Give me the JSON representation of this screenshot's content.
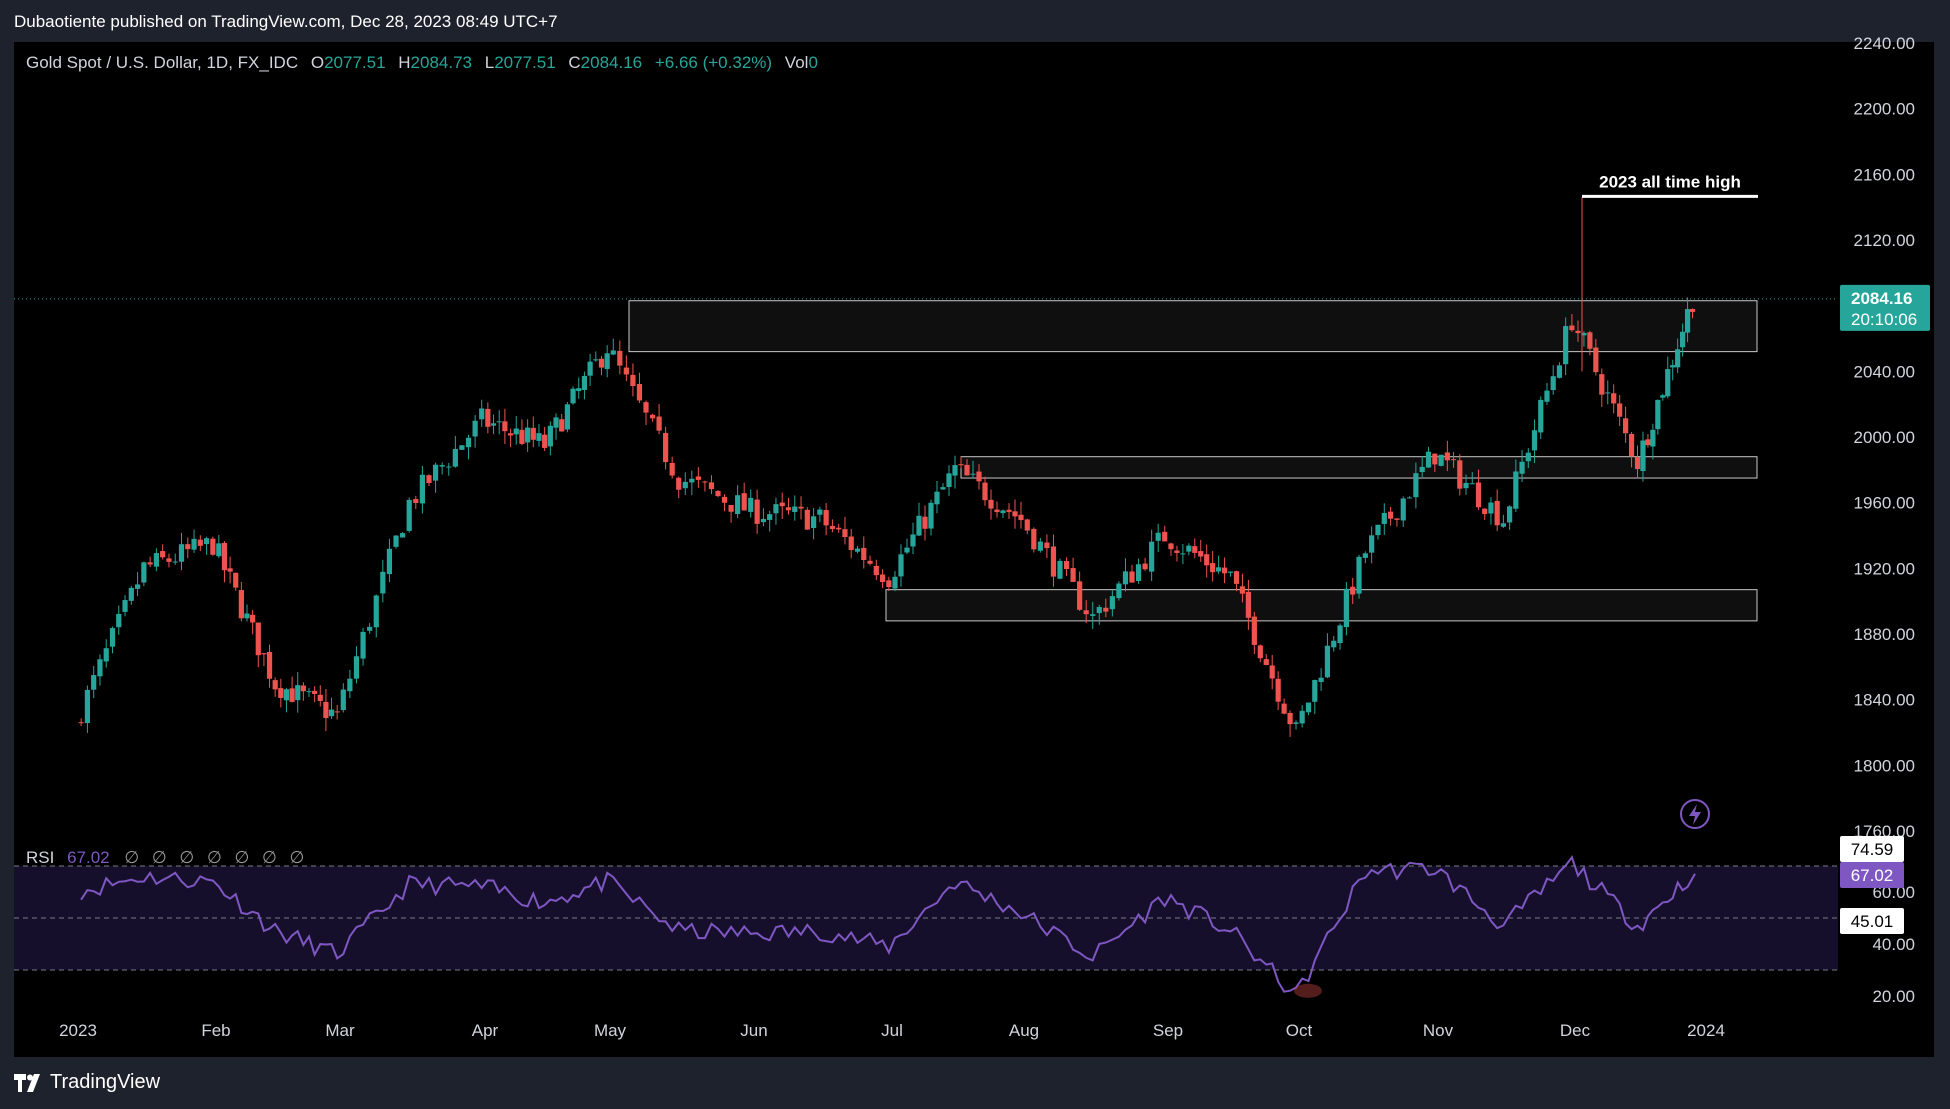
{
  "header": {
    "published_text": "Dubaotiente published on TradingView.com, Dec 28, 2023 08:49 UTC+7"
  },
  "footer": {
    "brand": "TradingView"
  },
  "legend": {
    "symbol": "Gold Spot / U.S. Dollar, 1D, FX_IDC",
    "open_label": "O",
    "open": "2077.51",
    "high_label": "H",
    "high": "2084.73",
    "low_label": "L",
    "low": "2077.51",
    "close_label": "C",
    "close": "2084.16",
    "change": "+6.66 (+0.32%)",
    "vol_label": "Vol",
    "vol": "0"
  },
  "rsi_legend": {
    "name": "RSI",
    "value": "67.02",
    "zeros": "∅ ∅ ∅ ∅ ∅ ∅ ∅"
  },
  "price_tag": {
    "price": "2084.16",
    "countdown": "20:10:06"
  },
  "rsi_tags": {
    "upper": "74.59",
    "current": "67.02",
    "lower": "45.01"
  },
  "annotation": "2023 all time high",
  "colors": {
    "up": "#26a69a",
    "down": "#ef5350",
    "rsi": "#7e57c2",
    "background": "#000000"
  },
  "chart_data": [
    {
      "type": "candlestick",
      "title": "Gold Spot / U.S. Dollar, 1D, FX_IDC",
      "x_ticks": [
        "2023",
        "Feb",
        "Mar",
        "Apr",
        "May",
        "Jun",
        "Jul",
        "Aug",
        "Sep",
        "Oct",
        "Nov",
        "Dec",
        "2024"
      ],
      "y_ticks": [
        "1760.00",
        "1800.00",
        "1840.00",
        "1880.00",
        "1920.00",
        "1960.00",
        "2000.00",
        "2040.00",
        "2080.00",
        "2120.00",
        "2160.00",
        "2200.00",
        "2240.00"
      ],
      "ylim": [
        1760,
        2240
      ],
      "last_price": 2084.16,
      "all_time_high": 2146,
      "zones": [
        {
          "low": 2052,
          "high": 2083
        },
        {
          "low": 1975,
          "high": 1988
        },
        {
          "low": 1888,
          "high": 1907
        }
      ],
      "monthly_path": [
        {
          "month": "2023",
          "price": 1825
        },
        {
          "month": "Jan mid",
          "price": 1920
        },
        {
          "month": "Feb",
          "price": 1935
        },
        {
          "month": "Feb mid",
          "price": 1850
        },
        {
          "month": "Mar",
          "price": 1830
        },
        {
          "month": "Mar mid",
          "price": 1960
        },
        {
          "month": "Apr",
          "price": 2010
        },
        {
          "month": "Apr mid",
          "price": 1995
        },
        {
          "month": "May",
          "price": 2055
        },
        {
          "month": "May mid",
          "price": 1975
        },
        {
          "month": "Jun",
          "price": 1955
        },
        {
          "month": "Jun mid",
          "price": 1950
        },
        {
          "month": "Jul",
          "price": 1915
        },
        {
          "month": "Jul mid",
          "price": 1980
        },
        {
          "month": "Aug",
          "price": 1950
        },
        {
          "month": "Aug mid",
          "price": 1890
        },
        {
          "month": "Sep",
          "price": 1940
        },
        {
          "month": "Sep mid",
          "price": 1915
        },
        {
          "month": "Oct",
          "price": 1820
        },
        {
          "month": "Oct mid",
          "price": 1930
        },
        {
          "month": "Nov",
          "price": 1990
        },
        {
          "month": "Nov mid",
          "price": 1950
        },
        {
          "month": "Dec",
          "price": 2072
        },
        {
          "month": "Dec mid",
          "price": 1985
        },
        {
          "month": "Dec 27",
          "price": 2084.16
        }
      ]
    },
    {
      "type": "line",
      "title": "RSI",
      "y_ticks": [
        "20.00",
        "40.00",
        "60.00"
      ],
      "levels": [
        70,
        50,
        30
      ],
      "last_value": 67.02,
      "monthly_path": [
        {
          "month": "2023",
          "value": 60
        },
        {
          "month": "Jan mid",
          "value": 66
        },
        {
          "month": "Feb",
          "value": 64
        },
        {
          "month": "Feb mid",
          "value": 45
        },
        {
          "month": "Mar",
          "value": 36
        },
        {
          "month": "Mar mid",
          "value": 63
        },
        {
          "month": "Apr",
          "value": 62
        },
        {
          "month": "Apr mid",
          "value": 56
        },
        {
          "month": "May",
          "value": 64
        },
        {
          "month": "May mid",
          "value": 45
        },
        {
          "month": "Jun",
          "value": 44
        },
        {
          "month": "Jun mid",
          "value": 45
        },
        {
          "month": "Jul",
          "value": 39
        },
        {
          "month": "Jul mid",
          "value": 64
        },
        {
          "month": "Aug",
          "value": 52
        },
        {
          "month": "Aug mid",
          "value": 35
        },
        {
          "month": "Sep",
          "value": 58
        },
        {
          "month": "Sep mid",
          "value": 45
        },
        {
          "month": "Oct",
          "value": 20
        },
        {
          "month": "Oct mid",
          "value": 68
        },
        {
          "month": "Nov",
          "value": 69
        },
        {
          "month": "Nov mid",
          "value": 47
        },
        {
          "month": "Dec",
          "value": 71
        },
        {
          "month": "Dec mid",
          "value": 47
        },
        {
          "month": "Dec 27",
          "value": 67
        }
      ]
    }
  ]
}
